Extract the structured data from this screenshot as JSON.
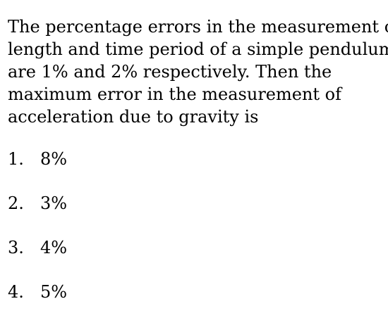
{
  "question": {
    "lines": [
      "The percentage errors in the measurement of",
      "length and time period of a simple pendulum",
      "are 1% and 2% respectively. Then the",
      "maximum error in the measurement of",
      "acceleration due to gravity is"
    ]
  },
  "options": [
    {
      "number": "1.",
      "text": "8%"
    },
    {
      "number": "2.",
      "text": "3%"
    },
    {
      "number": "3.",
      "text": "4%"
    },
    {
      "number": "4.",
      "text": "5%"
    }
  ]
}
